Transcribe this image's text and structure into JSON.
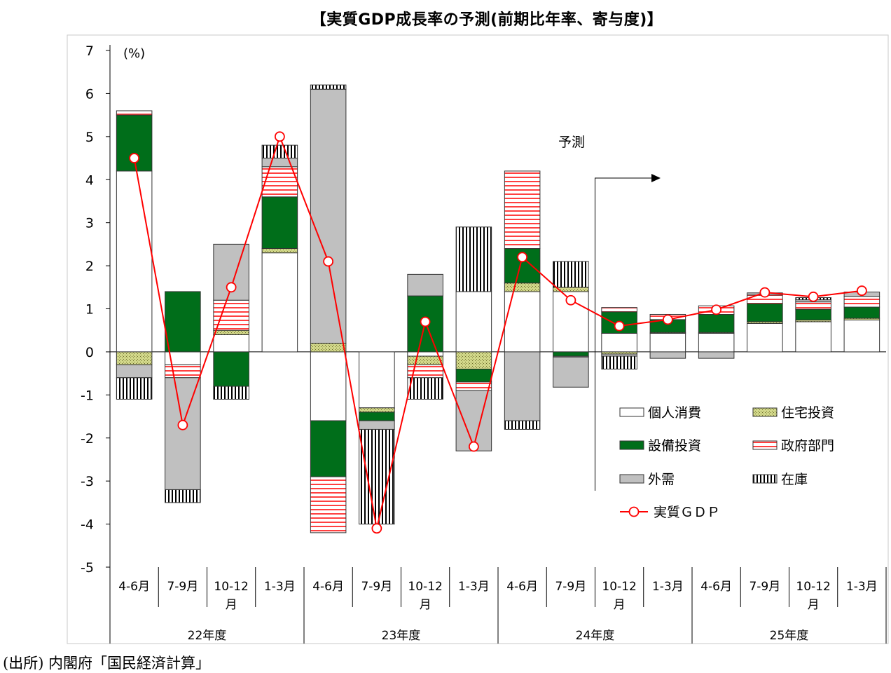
{
  "title": "【実質GDP成長率の予測(前期比年率、寄与度)】",
  "source": "(出所) 内閣府「国民経済計算」",
  "chart_data": {
    "type": "bar",
    "stacked": true,
    "unit_label": "(%)",
    "ylim": [
      -5,
      7
    ],
    "yticks": [
      7,
      6,
      5,
      4,
      3,
      2,
      1,
      0,
      -1,
      -2,
      -3,
      -4,
      -5
    ],
    "categories": [
      "4-6月",
      "7-9月",
      "10-12月",
      "1-3月",
      "4-6月",
      "7-9月",
      "10-12月",
      "1-3月",
      "4-6月",
      "7-9月",
      "10-12月",
      "1-3月",
      "4-6月",
      "7-9月",
      "10-12月",
      "1-3月"
    ],
    "category_lines": [
      [
        "4-6月"
      ],
      [
        "7-9月"
      ],
      [
        "10-12",
        "月"
      ],
      [
        "1-3月"
      ],
      [
        "4-6月"
      ],
      [
        "7-9月"
      ],
      [
        "10-12",
        "月"
      ],
      [
        "1-3月"
      ],
      [
        "4-6月"
      ],
      [
        "7-9月"
      ],
      [
        "10-12",
        "月"
      ],
      [
        "1-3月"
      ],
      [
        "4-6月"
      ],
      [
        "7-9月"
      ],
      [
        "10-12",
        "月"
      ],
      [
        "1-3月"
      ]
    ],
    "groups": [
      "22年度",
      "23年度",
      "24年度",
      "25年度"
    ],
    "forecast_label": "予測",
    "forecast_start_index": 10,
    "series": [
      {
        "name": "個人消費",
        "key": "consumption",
        "color": "#ffffff",
        "values": [
          4.2,
          -0.3,
          0.4,
          2.3,
          -1.6,
          -1.3,
          -0.1,
          1.4,
          1.4,
          1.4,
          0.43,
          0.43,
          0.43,
          0.66,
          0.7,
          0.74
        ]
      },
      {
        "name": "住宅投資",
        "key": "housing",
        "color": "#d2d88a",
        "values": [
          -0.3,
          0.0,
          0.1,
          0.1,
          0.2,
          -0.1,
          -0.2,
          -0.4,
          0.2,
          0.1,
          -0.05,
          0.02,
          0.02,
          0.04,
          0.04,
          0.04
        ]
      },
      {
        "name": "設備投資",
        "key": "capex",
        "color": "#006e1a",
        "values": [
          1.3,
          1.4,
          -0.8,
          1.2,
          -1.3,
          -0.2,
          1.3,
          -0.3,
          0.8,
          -0.1,
          0.5,
          0.3,
          0.42,
          0.42,
          0.25,
          0.26
        ]
      },
      {
        "name": "政府部門",
        "key": "government",
        "color": "#ff4040",
        "values": [
          0.1,
          -0.3,
          0.7,
          0.7,
          -1.3,
          0.0,
          -0.3,
          -0.2,
          1.8,
          -0.02,
          0.1,
          0.12,
          0.2,
          0.2,
          0.17,
          0.25
        ]
      },
      {
        "name": "外需",
        "key": "net_exports",
        "color": "#c0c0c0",
        "values": [
          -0.3,
          -2.6,
          1.3,
          0.2,
          5.9,
          -0.2,
          0.5,
          -1.4,
          -1.6,
          -0.7,
          -0.05,
          -0.15,
          -0.15,
          0.05,
          0.05,
          0.1
        ]
      },
      {
        "name": "在庫",
        "key": "inventory",
        "color": "#ffffff",
        "values": [
          -0.5,
          -0.3,
          -0.3,
          0.3,
          0.1,
          -2.2,
          -0.5,
          1.5,
          -0.2,
          0.6,
          -0.3,
          0.0,
          0.0,
          0.0,
          0.05,
          0.0
        ]
      }
    ],
    "gdp_series": {
      "name": "実質ＧＤＰ",
      "color": "#ff0000",
      "values": [
        4.5,
        -1.7,
        1.5,
        5.0,
        2.1,
        -4.1,
        0.7,
        -2.2,
        2.2,
        1.2,
        0.6,
        0.75,
        0.98,
        1.38,
        1.28,
        1.42
      ]
    },
    "legend": {
      "placement": "inside-lower-right"
    }
  }
}
